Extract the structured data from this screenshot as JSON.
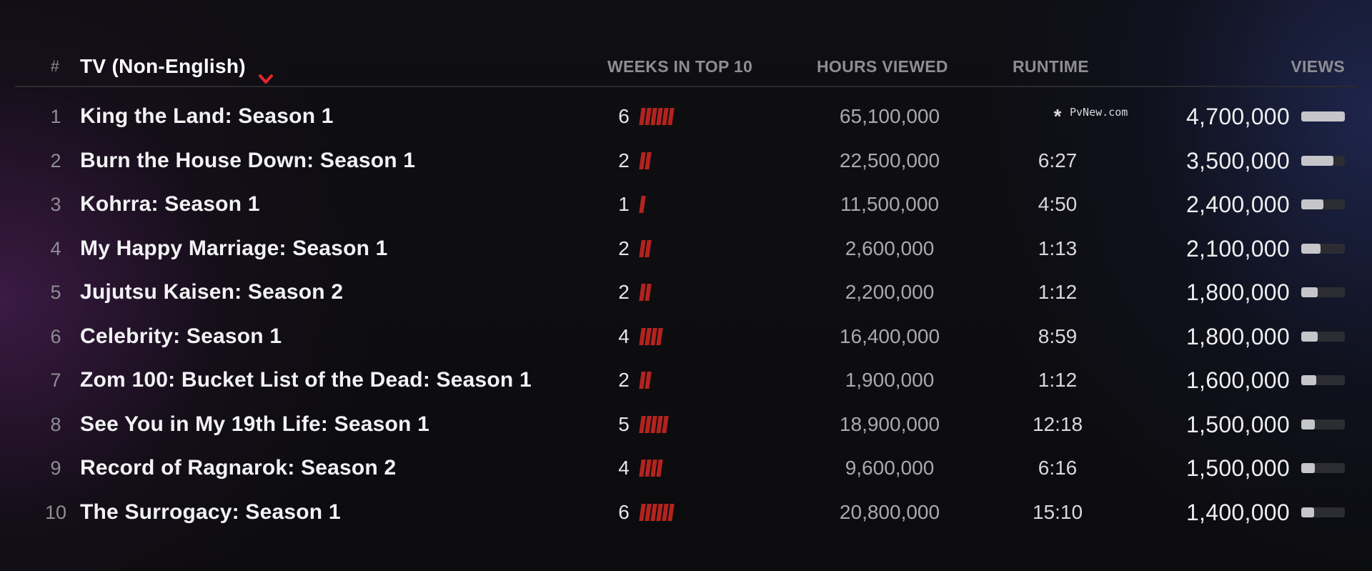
{
  "header": {
    "rank_label": "#",
    "category_label": "TV (Non-English)",
    "category_chevron_icon": "chevron-down-icon",
    "weeks_label": "WEEKS IN TOP 10",
    "hours_label": "HOURS VIEWED",
    "runtime_label": "RUNTIME",
    "views_label": "VIEWS"
  },
  "colors": {
    "weeks_bar": "#b3231f",
    "chevron": "#e1262d",
    "views_bar_fill": "#c6c6ca",
    "views_bar_track": "#2c2d32"
  },
  "watermark": "PvNew.com",
  "max_weeks": 6,
  "max_views": 4700000,
  "rows": [
    {
      "rank": "1",
      "title": "King the Land: Season 1",
      "weeks": "6",
      "weeks_count": 6,
      "hours": "65,100,000",
      "runtime": "*",
      "views": "4,700,000",
      "views_value": 4700000
    },
    {
      "rank": "2",
      "title": "Burn the House Down: Season 1",
      "weeks": "2",
      "weeks_count": 2,
      "hours": "22,500,000",
      "runtime": "6:27",
      "views": "3,500,000",
      "views_value": 3500000
    },
    {
      "rank": "3",
      "title": "Kohrra: Season 1",
      "weeks": "1",
      "weeks_count": 1,
      "hours": "11,500,000",
      "runtime": "4:50",
      "views": "2,400,000",
      "views_value": 2400000
    },
    {
      "rank": "4",
      "title": "My Happy Marriage: Season 1",
      "weeks": "2",
      "weeks_count": 2,
      "hours": "2,600,000",
      "runtime": "1:13",
      "views": "2,100,000",
      "views_value": 2100000
    },
    {
      "rank": "5",
      "title": "Jujutsu Kaisen: Season 2",
      "weeks": "2",
      "weeks_count": 2,
      "hours": "2,200,000",
      "runtime": "1:12",
      "views": "1,800,000",
      "views_value": 1800000
    },
    {
      "rank": "6",
      "title": "Celebrity: Season 1",
      "weeks": "4",
      "weeks_count": 4,
      "hours": "16,400,000",
      "runtime": "8:59",
      "views": "1,800,000",
      "views_value": 1800000
    },
    {
      "rank": "7",
      "title": "Zom 100: Bucket List of the Dead: Season 1",
      "weeks": "2",
      "weeks_count": 2,
      "hours": "1,900,000",
      "runtime": "1:12",
      "views": "1,600,000",
      "views_value": 1600000
    },
    {
      "rank": "8",
      "title": "See You in My 19th Life: Season 1",
      "weeks": "5",
      "weeks_count": 5,
      "hours": "18,900,000",
      "runtime": "12:18",
      "views": "1,500,000",
      "views_value": 1500000
    },
    {
      "rank": "9",
      "title": "Record of Ragnarok: Season 2",
      "weeks": "4",
      "weeks_count": 4,
      "hours": "9,600,000",
      "runtime": "6:16",
      "views": "1,500,000",
      "views_value": 1500000
    },
    {
      "rank": "10",
      "title": "The Surrogacy: Season 1",
      "weeks": "6",
      "weeks_count": 6,
      "hours": "20,800,000",
      "runtime": "15:10",
      "views": "1,400,000",
      "views_value": 1400000
    }
  ]
}
